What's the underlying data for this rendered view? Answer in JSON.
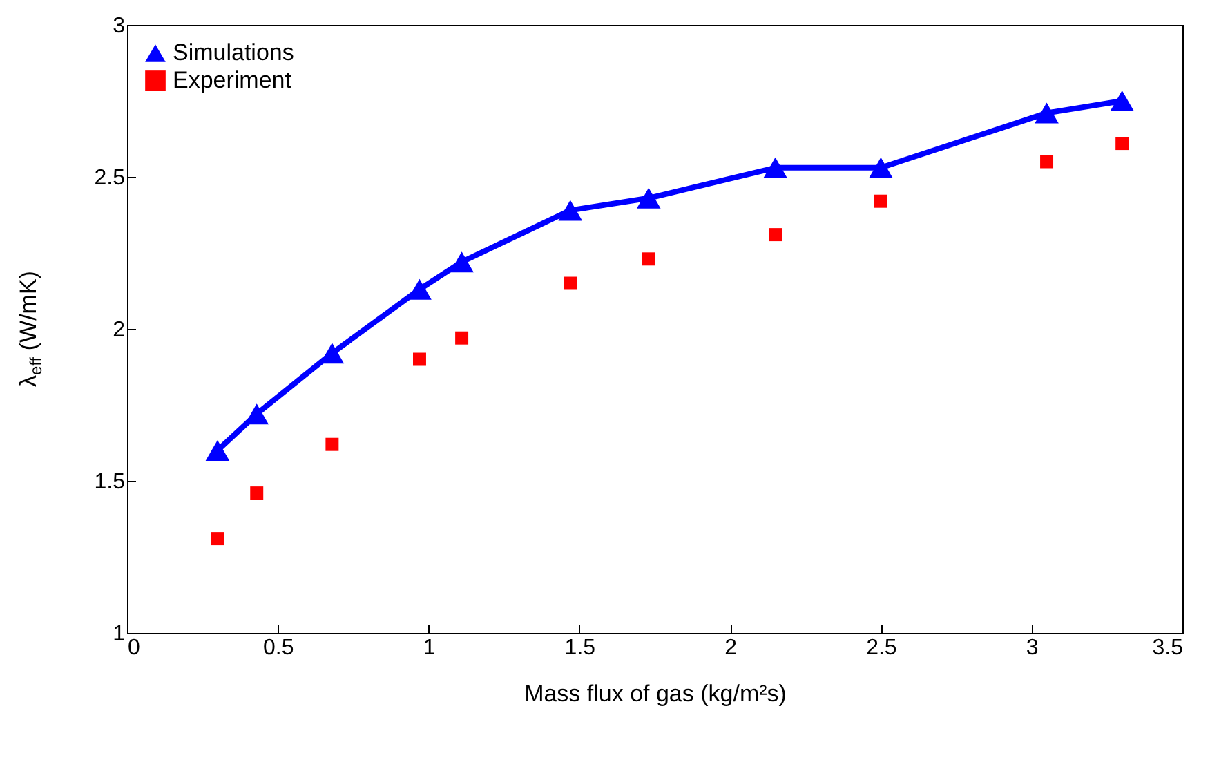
{
  "chart_data": {
    "type": "line",
    "xlabel": "Mass flux of gas (kg/m²s)",
    "ylabel": "λ$_{eff}$ (W/mK)",
    "xlim": [
      0,
      3.5
    ],
    "xticks": [
      0,
      0.5,
      1,
      1.5,
      2,
      2.5,
      3,
      3.5
    ],
    "ylim": [
      1,
      3
    ],
    "yticks": [
      1,
      1.5,
      2,
      2.5,
      3
    ],
    "x": [
      0.3,
      0.43,
      0.68,
      0.97,
      1.11,
      1.47,
      1.73,
      2.15,
      2.5,
      3.05,
      3.3
    ],
    "series": [
      {
        "name": "Simulations",
        "marker": "triangle",
        "color": "#0000ff",
        "values": [
          1.6,
          1.72,
          1.92,
          2.13,
          2.22,
          2.39,
          2.43,
          2.53,
          2.53,
          2.71,
          2.75
        ]
      },
      {
        "name": "Experiment",
        "type": "scatter",
        "marker": "square",
        "color": "#ff0000",
        "values": [
          1.31,
          1.46,
          1.62,
          1.9,
          1.97,
          2.15,
          2.23,
          2.31,
          2.42,
          2.55,
          2.61
        ]
      }
    ],
    "grid": false,
    "legend": "top left"
  }
}
